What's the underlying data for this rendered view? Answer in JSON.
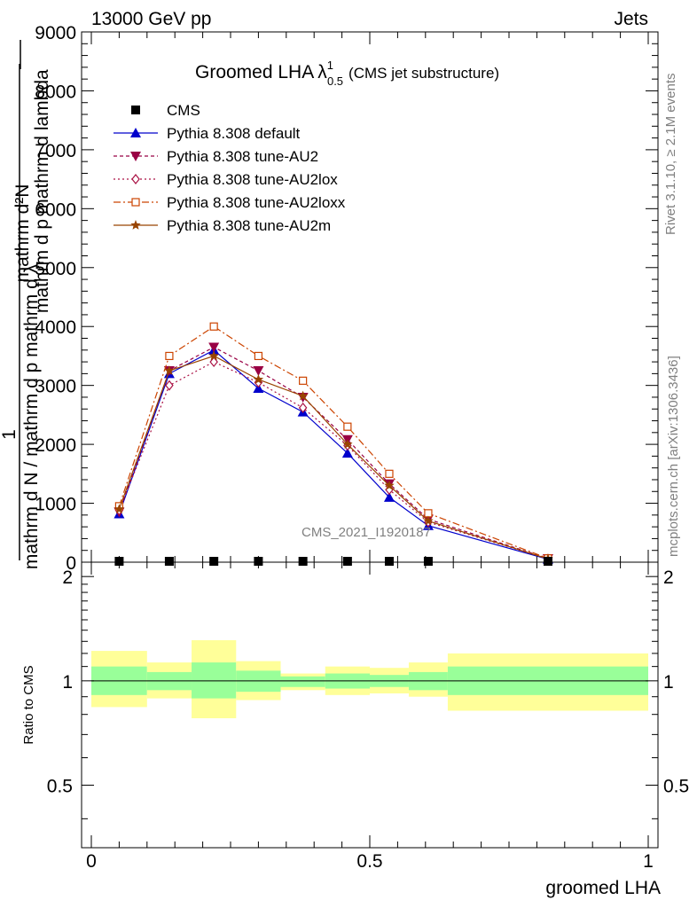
{
  "header": {
    "left": "13000 GeV pp",
    "right": "Jets"
  },
  "main_plot": {
    "title_main": "Groomed LHA",
    "title_lambda": "λ",
    "title_sup": "1",
    "title_sub": "0.5",
    "title_suffix": "(CMS jet substructure)",
    "watermark": "CMS_2021_I1920187",
    "ylabel_numerator": "mathrm d²N",
    "ylabel_denominator_a": "mathrm d p",
    "ylabel_denominator_b": "mathrm d lambda",
    "ylabel_bottom": "mathrm d N / mathrm d p mathrm d λ",
    "ylabel_one": "1"
  },
  "side_text": {
    "rivet": "Rivet 3.1.10, ≥ 2.1M events",
    "mcplots": "mcplots.cern.ch [arXiv:1306.3436]"
  },
  "ratio_plot": {
    "ylabel": "Ratio to CMS"
  },
  "xaxis": {
    "label": "groomed LHA"
  },
  "chart_data": [
    {
      "type": "line",
      "title": "Groomed LHA λ^1_0.5 (CMS jet substructure)",
      "xlabel": "groomed LHA",
      "ylabel": "1 / (mathrm d N / mathrm d p mathrm d λ) · mathrm d²N / (mathrm d p mathrm d lambda)",
      "xlim": [
        -0.02,
        1.02
      ],
      "ylim": [
        0,
        9000
      ],
      "yticks": [
        0,
        1000,
        2000,
        3000,
        4000,
        5000,
        6000,
        7000,
        8000,
        9000
      ],
      "ytick_labels": [
        "0",
        "1000",
        "2000",
        "3000",
        "4000",
        "5000",
        "6000",
        "7000",
        "8000",
        "9000"
      ],
      "legend_position": "top-left",
      "series": [
        {
          "name": "CMS",
          "marker": "square",
          "color": "#000000",
          "x": [
            0.05,
            0.14,
            0.22,
            0.3,
            0.38,
            0.46,
            0.535,
            0.605,
            0.82
          ],
          "y": [
            5,
            5,
            5,
            5,
            5,
            5,
            5,
            5,
            5
          ]
        },
        {
          "name": "Pythia 8.308 default",
          "marker": "triangle-up",
          "color": "#0000cc",
          "dash": "",
          "x": [
            0.05,
            0.14,
            0.22,
            0.3,
            0.38,
            0.46,
            0.535,
            0.605,
            0.82
          ],
          "y": [
            820,
            3200,
            3600,
            2950,
            2550,
            1850,
            1100,
            620,
            50
          ]
        },
        {
          "name": "Pythia 8.308 tune-AU2",
          "marker": "triangle-down",
          "color": "#990044",
          "dash": "4,3",
          "x": [
            0.05,
            0.14,
            0.22,
            0.3,
            0.38,
            0.46,
            0.535,
            0.605,
            0.82
          ],
          "y": [
            850,
            3250,
            3650,
            3250,
            2800,
            2080,
            1330,
            730,
            60
          ]
        },
        {
          "name": "Pythia 8.308 tune-AU2lox",
          "marker": "diamond-open",
          "color": "#aa1144",
          "dash": "2,3",
          "x": [
            0.05,
            0.14,
            0.22,
            0.3,
            0.38,
            0.46,
            0.535,
            0.605,
            0.82
          ],
          "y": [
            880,
            3000,
            3400,
            3050,
            2620,
            1980,
            1230,
            680,
            55
          ]
        },
        {
          "name": "Pythia 8.308 tune-AU2loxx",
          "marker": "square-open",
          "color": "#cc4400",
          "dash": "8,3,2,3",
          "x": [
            0.05,
            0.14,
            0.22,
            0.3,
            0.38,
            0.46,
            0.535,
            0.605,
            0.82
          ],
          "y": [
            950,
            3500,
            4000,
            3500,
            3080,
            2300,
            1500,
            830,
            65
          ]
        },
        {
          "name": "Pythia 8.308 tune-AU2m",
          "marker": "star",
          "color": "#994400",
          "dash": "",
          "x": [
            0.05,
            0.14,
            0.22,
            0.3,
            0.38,
            0.46,
            0.535,
            0.605,
            0.82
          ],
          "y": [
            900,
            3250,
            3500,
            3100,
            2820,
            2000,
            1300,
            700,
            55
          ]
        }
      ]
    },
    {
      "type": "area",
      "ylabel": "Ratio to CMS",
      "xlabel": "groomed LHA",
      "xlim": [
        -0.02,
        1.02
      ],
      "ylim": [
        0.33,
        2.2
      ],
      "yscale": "log",
      "yticks": [
        0.5,
        1,
        2
      ],
      "ytick_labels": [
        "0.5",
        "1",
        "2"
      ],
      "xticks": [
        0,
        0.5,
        1
      ],
      "xtick_labels": [
        "0",
        "0.5",
        "1"
      ],
      "reference_line": 1,
      "bins": [
        {
          "x0": 0.0,
          "x1": 0.1,
          "inner": [
            0.91,
            1.1
          ],
          "outer": [
            0.84,
            1.22
          ]
        },
        {
          "x0": 0.1,
          "x1": 0.18,
          "inner": [
            0.94,
            1.06
          ],
          "outer": [
            0.89,
            1.13
          ]
        },
        {
          "x0": 0.18,
          "x1": 0.26,
          "inner": [
            0.89,
            1.13
          ],
          "outer": [
            0.78,
            1.31
          ]
        },
        {
          "x0": 0.26,
          "x1": 0.34,
          "inner": [
            0.93,
            1.07
          ],
          "outer": [
            0.88,
            1.14
          ]
        },
        {
          "x0": 0.34,
          "x1": 0.42,
          "inner": [
            0.96,
            1.03
          ],
          "outer": [
            0.94,
            1.05
          ]
        },
        {
          "x0": 0.42,
          "x1": 0.5,
          "inner": [
            0.95,
            1.05
          ],
          "outer": [
            0.91,
            1.1
          ]
        },
        {
          "x0": 0.5,
          "x1": 0.57,
          "inner": [
            0.96,
            1.04
          ],
          "outer": [
            0.92,
            1.09
          ]
        },
        {
          "x0": 0.57,
          "x1": 0.64,
          "inner": [
            0.94,
            1.06
          ],
          "outer": [
            0.9,
            1.13
          ]
        },
        {
          "x0": 0.64,
          "x1": 1.0,
          "inner": [
            0.91,
            1.1
          ],
          "outer": [
            0.82,
            1.2
          ]
        }
      ],
      "colors": {
        "inner": "#99ff99",
        "outer": "#ffff99"
      }
    }
  ]
}
